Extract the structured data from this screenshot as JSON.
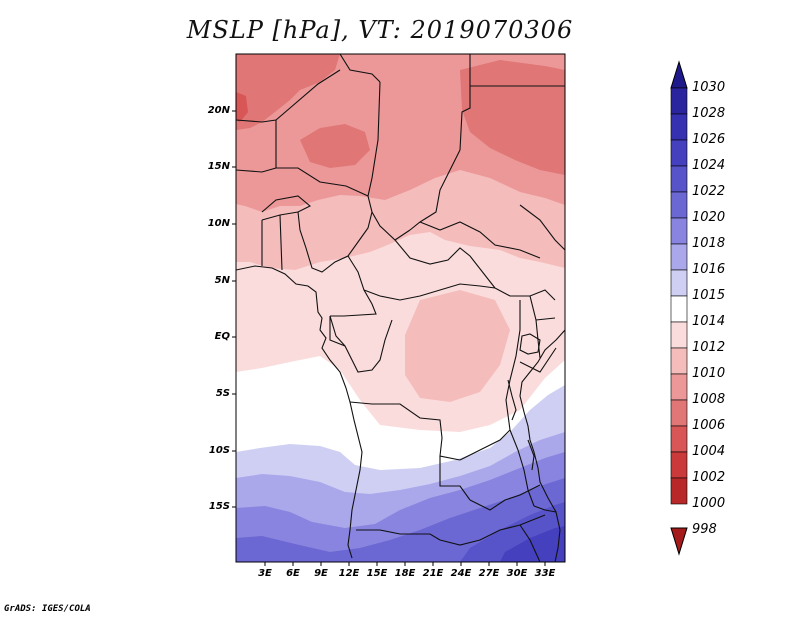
{
  "title": "MSLP [hPa], VT: 2019070306",
  "credit": "GrADS: IGES/COLA",
  "lat_labels": [
    "20N",
    "15N",
    "10N",
    "5N",
    "EQ",
    "5S",
    "10S",
    "15S"
  ],
  "lon_labels": [
    "3E",
    "6E",
    "9E",
    "12E",
    "15E",
    "18E",
    "21E",
    "24E",
    "27E",
    "30E",
    "33E"
  ],
  "colorbar": {
    "levels": [
      {
        "label": "1030",
        "color": "#1f1a8c"
      },
      {
        "label": "1028",
        "color": "#2a259e"
      },
      {
        "label": "1026",
        "color": "#3531b0"
      },
      {
        "label": "1024",
        "color": "#4540be"
      },
      {
        "label": "1022",
        "color": "#5753c9"
      },
      {
        "label": "1020",
        "color": "#6b67d3"
      },
      {
        "label": "1018",
        "color": "#8884df"
      },
      {
        "label": "1016",
        "color": "#aaa8ea"
      },
      {
        "label": "1015",
        "color": "#cfcff4"
      },
      {
        "label": "1014",
        "color": "#ffffff"
      },
      {
        "label": "1012",
        "color": "#fbdcdc"
      },
      {
        "label": "1010",
        "color": "#f5bcbc"
      },
      {
        "label": "1008",
        "color": "#ec9898"
      },
      {
        "label": "1006",
        "color": "#e07676"
      },
      {
        "label": "1004",
        "color": "#d85656"
      },
      {
        "label": "1002",
        "color": "#cb3a3a"
      },
      {
        "label": "1000",
        "color": "#b82828"
      },
      {
        "label": "998",
        "color": "#a51a1a"
      }
    ]
  }
}
